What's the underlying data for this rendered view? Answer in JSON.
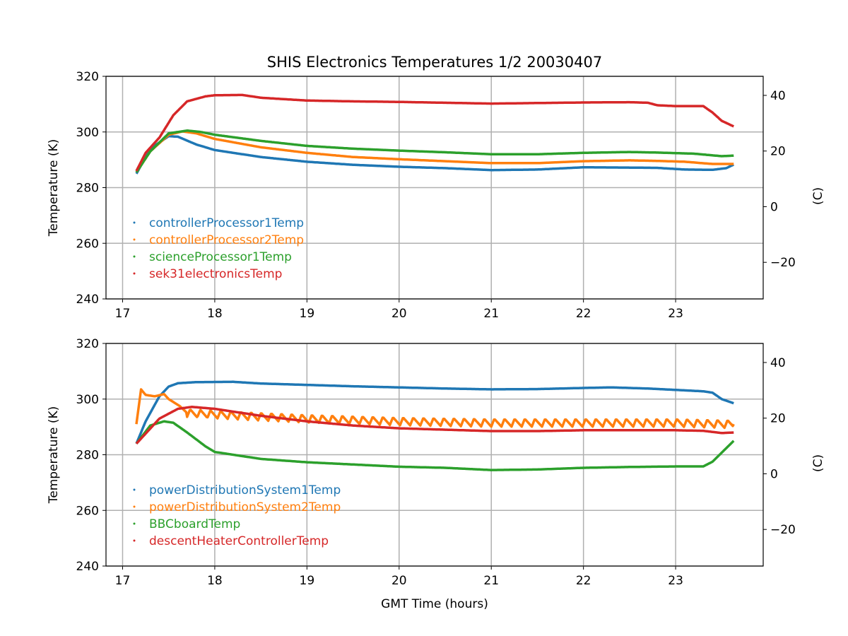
{
  "chart_data": [
    {
      "type": "line",
      "title": "SHIS Electronics Temperatures 1/2 20030407",
      "xlabel": "",
      "ylabel": "Temperature (K)",
      "y2label": "(C)",
      "xlim": [
        16.82,
        23.95
      ],
      "ylim": [
        240,
        320
      ],
      "xticks": [
        17,
        18,
        19,
        20,
        21,
        22,
        23
      ],
      "yticks": [
        240,
        260,
        280,
        300,
        320
      ],
      "y2ticks": [
        -20,
        0,
        20,
        40
      ],
      "grid": true,
      "legend": "lower-left",
      "series": [
        {
          "name": "controllerProcessor1Temp",
          "color": "#1f77b4",
          "points": [
            [
              17.15,
              285
            ],
            [
              17.3,
              294
            ],
            [
              17.5,
              298.5
            ],
            [
              17.6,
              298.3
            ],
            [
              17.8,
              295.5
            ],
            [
              18,
              293.5
            ],
            [
              18.5,
              291
            ],
            [
              19,
              289.3
            ],
            [
              19.5,
              288.2
            ],
            [
              20,
              287.5
            ],
            [
              20.5,
              287
            ],
            [
              21,
              286.3
            ],
            [
              21.5,
              286.5
            ],
            [
              22,
              287.3
            ],
            [
              22.5,
              287.2
            ],
            [
              22.8,
              287.1
            ],
            [
              23.1,
              286.5
            ],
            [
              23.4,
              286.4
            ],
            [
              23.55,
              287
            ],
            [
              23.63,
              288.3
            ]
          ]
        },
        {
          "name": "controllerProcessor2Temp",
          "color": "#ff7f0e",
          "points": [
            [
              17.15,
              285.5
            ],
            [
              17.3,
              293
            ],
            [
              17.5,
              299
            ],
            [
              17.65,
              300.2
            ],
            [
              17.8,
              299.5
            ],
            [
              18,
              297.5
            ],
            [
              18.5,
              294.5
            ],
            [
              19,
              292.5
            ],
            [
              19.5,
              291
            ],
            [
              20,
              290.2
            ],
            [
              20.5,
              289.5
            ],
            [
              21,
              288.8
            ],
            [
              21.5,
              288.8
            ],
            [
              22,
              289.5
            ],
            [
              22.5,
              289.8
            ],
            [
              22.8,
              289.6
            ],
            [
              23.1,
              289.3
            ],
            [
              23.4,
              288.5
            ],
            [
              23.63,
              288.5
            ]
          ]
        },
        {
          "name": "scienceProcessor1Temp",
          "color": "#2ca02c",
          "points": [
            [
              17.15,
              285.5
            ],
            [
              17.3,
              293
            ],
            [
              17.5,
              299.5
            ],
            [
              17.7,
              300.5
            ],
            [
              17.85,
              300
            ],
            [
              18,
              299
            ],
            [
              18.5,
              296.8
            ],
            [
              19,
              295
            ],
            [
              19.5,
              294
            ],
            [
              20,
              293.3
            ],
            [
              20.5,
              292.7
            ],
            [
              21,
              292
            ],
            [
              21.5,
              292
            ],
            [
              22,
              292.5
            ],
            [
              22.5,
              292.8
            ],
            [
              22.8,
              292.6
            ],
            [
              23.2,
              292.2
            ],
            [
              23.5,
              291.3
            ],
            [
              23.63,
              291.5
            ]
          ]
        },
        {
          "name": "sek31electronicsTemp",
          "color": "#d62728",
          "points": [
            [
              17.15,
              286
            ],
            [
              17.25,
              292.5
            ],
            [
              17.4,
              298
            ],
            [
              17.55,
              306
            ],
            [
              17.7,
              311
            ],
            [
              17.9,
              312.8
            ],
            [
              18,
              313.2
            ],
            [
              18.3,
              313.3
            ],
            [
              18.5,
              312.3
            ],
            [
              19,
              311.3
            ],
            [
              19.5,
              311
            ],
            [
              20,
              310.8
            ],
            [
              20.5,
              310.5
            ],
            [
              21,
              310.2
            ],
            [
              21.5,
              310.4
            ],
            [
              22,
              310.6
            ],
            [
              22.5,
              310.7
            ],
            [
              22.7,
              310.5
            ],
            [
              22.8,
              309.6
            ],
            [
              23,
              309.3
            ],
            [
              23.3,
              309.3
            ],
            [
              23.4,
              307
            ],
            [
              23.5,
              304
            ],
            [
              23.63,
              302
            ]
          ]
        }
      ]
    },
    {
      "type": "line",
      "title": "",
      "xlabel": "GMT Time (hours)",
      "ylabel": "Temperature (K)",
      "y2label": "(C)",
      "xlim": [
        16.82,
        23.95
      ],
      "ylim": [
        240,
        320
      ],
      "xticks": [
        17,
        18,
        19,
        20,
        21,
        22,
        23
      ],
      "yticks": [
        240,
        260,
        280,
        300,
        320
      ],
      "y2ticks": [
        -20,
        0,
        20,
        40
      ],
      "grid": true,
      "legend": "lower-left",
      "series": [
        {
          "name": "powerDistributionSystem1Temp",
          "color": "#1f77b4",
          "points": [
            [
              17.15,
              284
            ],
            [
              17.25,
              292
            ],
            [
              17.4,
              301
            ],
            [
              17.5,
              304.5
            ],
            [
              17.6,
              305.7
            ],
            [
              17.8,
              306.1
            ],
            [
              18.2,
              306.2
            ],
            [
              18.5,
              305.6
            ],
            [
              19,
              305.1
            ],
            [
              19.5,
              304.6
            ],
            [
              20,
              304.2
            ],
            [
              20.5,
              303.8
            ],
            [
              21,
              303.5
            ],
            [
              21.5,
              303.6
            ],
            [
              22,
              304
            ],
            [
              22.3,
              304.2
            ],
            [
              22.7,
              303.8
            ],
            [
              23,
              303.3
            ],
            [
              23.3,
              302.8
            ],
            [
              23.4,
              302.3
            ],
            [
              23.5,
              300
            ],
            [
              23.63,
              298.5
            ]
          ]
        },
        {
          "name": "powerDistributionSystem2Temp",
          "color": "#ff7f0e",
          "oscillation": {
            "amplitude": 1.4,
            "period": 0.11,
            "start": 17.7
          },
          "points": [
            [
              17.15,
              291
            ],
            [
              17.2,
              303.5
            ],
            [
              17.25,
              301.5
            ],
            [
              17.35,
              301
            ],
            [
              17.45,
              301.8
            ],
            [
              17.5,
              300
            ],
            [
              17.62,
              297.5
            ],
            [
              17.7,
              295
            ],
            [
              18,
              294.5
            ],
            [
              18.5,
              293.7
            ],
            [
              19,
              293
            ],
            [
              19.5,
              292.5
            ],
            [
              20,
              292
            ],
            [
              21,
              291.5
            ],
            [
              22,
              291.5
            ],
            [
              23,
              291.5
            ],
            [
              23.63,
              291
            ]
          ]
        },
        {
          "name": "BBCboardTemp",
          "color": "#2ca02c",
          "points": [
            [
              17.15,
              284
            ],
            [
              17.3,
              290.5
            ],
            [
              17.45,
              292
            ],
            [
              17.55,
              291.5
            ],
            [
              17.7,
              288
            ],
            [
              17.9,
              283
            ],
            [
              18,
              281
            ],
            [
              18.5,
              278.5
            ],
            [
              19,
              277.3
            ],
            [
              19.5,
              276.5
            ],
            [
              20,
              275.7
            ],
            [
              20.5,
              275.3
            ],
            [
              21,
              274.5
            ],
            [
              21.5,
              274.7
            ],
            [
              22,
              275.3
            ],
            [
              22.5,
              275.6
            ],
            [
              23,
              275.8
            ],
            [
              23.3,
              275.8
            ],
            [
              23.4,
              277.5
            ],
            [
              23.63,
              285
            ]
          ]
        },
        {
          "name": "descentHeaterControllerTemp",
          "color": "#d62728",
          "points": [
            [
              17.15,
              284
            ],
            [
              17.4,
              293
            ],
            [
              17.6,
              296.5
            ],
            [
              17.75,
              297.2
            ],
            [
              18,
              296.5
            ],
            [
              18.5,
              294
            ],
            [
              19,
              292
            ],
            [
              19.5,
              290.5
            ],
            [
              20,
              289.5
            ],
            [
              20.5,
              289
            ],
            [
              21,
              288.5
            ],
            [
              21.5,
              288.5
            ],
            [
              22,
              288.8
            ],
            [
              22.5,
              288.8
            ],
            [
              23,
              288.8
            ],
            [
              23.3,
              288.6
            ],
            [
              23.5,
              287.8
            ],
            [
              23.63,
              288
            ]
          ]
        }
      ]
    }
  ]
}
